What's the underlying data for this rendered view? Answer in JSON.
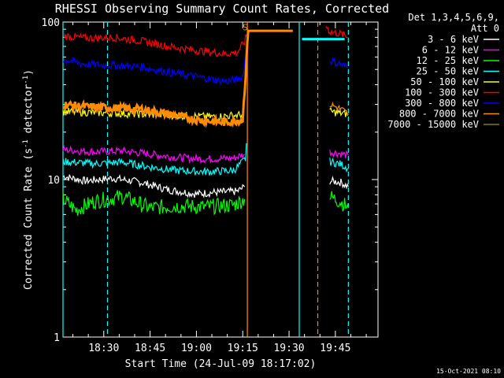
{
  "chart_data": {
    "type": "line",
    "title": "RHESSI Observing Summary Count Rates, Corrected",
    "xlabel": "Start Time (24-Jul-09 18:17:02)",
    "ylabel_main": "Corrected Count Rate (s",
    "ylabel_sup1": "-1",
    "ylabel_mid": " detector",
    "ylabel_sup2": "-1",
    "ylabel_end": ")",
    "yscale": "log",
    "ylim": [
      1,
      100
    ],
    "xlim_min": [
      18.28,
      19.98
    ],
    "y_ticks": [
      "1",
      "10",
      "100"
    ],
    "x_ticks": [
      {
        "label": "18:30",
        "t": 18.5
      },
      {
        "label": "18:45",
        "t": 18.75
      },
      {
        "label": "19:00",
        "t": 19.0
      },
      {
        "label": "19:15",
        "t": 19.25
      },
      {
        "label": "19:30",
        "t": 19.5
      },
      {
        "label": "19:45",
        "t": 19.75
      }
    ],
    "legend_header": [
      "Det 1,3,4,5,6,9,",
      "Att 0"
    ],
    "series": [
      {
        "name": "3 - 6 keV",
        "color": "#ffffff",
        "points": [
          [
            18.28,
            10.5
          ],
          [
            18.4,
            9.8
          ],
          [
            18.55,
            10.2
          ],
          [
            18.7,
            9.6
          ],
          [
            18.85,
            8.6
          ],
          [
            19.0,
            8.1
          ],
          [
            19.1,
            8.3
          ],
          [
            19.22,
            8.4
          ],
          [
            19.26,
            9.0
          ],
          [
            19.67,
            null
          ],
          [
            19.72,
            9.8
          ],
          [
            19.78,
            9.6
          ],
          [
            19.82,
            9.0
          ]
        ]
      },
      {
        "name": "6 - 12 keV",
        "color": "#ff00ff",
        "points": [
          [
            18.28,
            15.5
          ],
          [
            18.45,
            15.0
          ],
          [
            18.6,
            15.2
          ],
          [
            18.75,
            14.5
          ],
          [
            18.9,
            13.8
          ],
          [
            19.05,
            13.5
          ],
          [
            19.2,
            13.7
          ],
          [
            19.26,
            14.5
          ],
          [
            19.67,
            null
          ],
          [
            19.72,
            15.0
          ],
          [
            19.78,
            14.6
          ],
          [
            19.82,
            14.2
          ]
        ]
      },
      {
        "name": "12 - 25 keV",
        "color": "#00ff00",
        "points": [
          [
            18.28,
            7.5
          ],
          [
            18.35,
            6.4
          ],
          [
            18.45,
            7.3
          ],
          [
            18.6,
            7.8
          ],
          [
            18.75,
            6.6
          ],
          [
            18.9,
            6.8
          ],
          [
            19.05,
            6.7
          ],
          [
            19.2,
            6.9
          ],
          [
            19.26,
            7.5
          ],
          [
            19.67,
            null
          ],
          [
            19.72,
            7.8
          ],
          [
            19.78,
            7.2
          ],
          [
            19.82,
            6.6
          ]
        ]
      },
      {
        "name": "25 - 50 keV",
        "color": "#00ffff",
        "points": [
          [
            18.28,
            13.0
          ],
          [
            18.45,
            12.6
          ],
          [
            18.6,
            12.9
          ],
          [
            18.75,
            12.0
          ],
          [
            18.9,
            11.4
          ],
          [
            19.05,
            11.2
          ],
          [
            19.2,
            11.4
          ],
          [
            19.265,
            13.5
          ],
          [
            19.27,
            17.0
          ],
          [
            19.5,
            null
          ],
          [
            19.57,
            78
          ],
          [
            19.8,
            78
          ],
          [
            19.67,
            null
          ],
          [
            19.72,
            13.0
          ],
          [
            19.78,
            12.5
          ],
          [
            19.82,
            11.8
          ]
        ]
      },
      {
        "name": "50 - 100 keV",
        "color": "#ffff00",
        "points": [
          [
            18.28,
            27.0
          ],
          [
            18.5,
            26.5
          ],
          [
            18.7,
            26.0
          ],
          [
            18.9,
            25.5
          ],
          [
            19.1,
            25.0
          ],
          [
            19.25,
            25.8
          ],
          [
            19.67,
            null
          ],
          [
            19.72,
            27
          ],
          [
            19.82,
            26
          ]
        ]
      },
      {
        "name": "100 - 300 keV",
        "color": "#ff0000",
        "points": [
          [
            18.28,
            82
          ],
          [
            18.4,
            79
          ],
          [
            18.55,
            80
          ],
          [
            18.7,
            76
          ],
          [
            18.85,
            70
          ],
          [
            19.0,
            66
          ],
          [
            19.15,
            63
          ],
          [
            19.22,
            64
          ],
          [
            19.26,
            75
          ],
          [
            19.275,
            85
          ],
          [
            19.67,
            null
          ],
          [
            19.7,
            95
          ],
          [
            19.72,
            87
          ],
          [
            19.78,
            84
          ],
          [
            19.82,
            80
          ]
        ]
      },
      {
        "name": "300 - 800 keV",
        "color": "#0000ff",
        "points": [
          [
            18.28,
            58
          ],
          [
            18.4,
            54
          ],
          [
            18.55,
            53
          ],
          [
            18.7,
            52
          ],
          [
            18.85,
            48
          ],
          [
            19.0,
            45
          ],
          [
            19.15,
            42
          ],
          [
            19.22,
            43
          ],
          [
            19.25,
            45
          ],
          [
            19.26,
            55
          ],
          [
            19.275,
            78
          ],
          [
            19.67,
            null
          ],
          [
            19.72,
            57
          ],
          [
            19.78,
            54
          ],
          [
            19.82,
            51
          ]
        ]
      },
      {
        "name": "800 - 7000 keV",
        "color": "#ff8c00",
        "points": [
          [
            18.28,
            30
          ],
          [
            18.4,
            29
          ],
          [
            18.55,
            28.5
          ],
          [
            18.7,
            28
          ],
          [
            18.85,
            26
          ],
          [
            19.0,
            24
          ],
          [
            19.15,
            23
          ],
          [
            19.25,
            24
          ],
          [
            19.28,
            88
          ],
          [
            19.52,
            88
          ],
          [
            19.67,
            null
          ],
          [
            19.72,
            30
          ],
          [
            19.78,
            28
          ],
          [
            19.82,
            26
          ]
        ]
      },
      {
        "name": "7000 - 15000 keV",
        "color": "#808000",
        "points": []
      }
    ],
    "vlines": [
      {
        "t": 18.28,
        "color": "#00ffff",
        "style": "solid"
      },
      {
        "t": 18.52,
        "color": "#00ffff",
        "style": "dashed"
      },
      {
        "t": 19.275,
        "color": "#ff8c00",
        "style": "solid"
      },
      {
        "t": 19.555,
        "color": "#00ffff",
        "style": "solid"
      },
      {
        "t": 19.655,
        "color": "#ff8c00",
        "style": "dashed"
      },
      {
        "t": 19.82,
        "color": "#00ffff",
        "style": "dashed"
      }
    ],
    "annotation": {
      "text": "S",
      "t": 19.263,
      "y": 93,
      "color": "#ff8c00"
    }
  },
  "footer": {
    "timestamp": "15-Oct-2021 08:10"
  }
}
